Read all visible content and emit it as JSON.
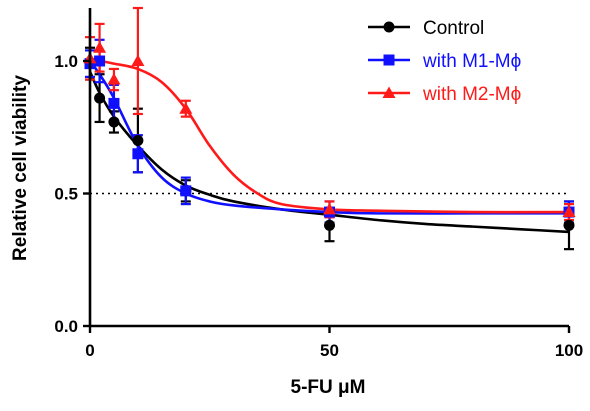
{
  "chart_data": {
    "type": "scatter",
    "title": "",
    "xlabel": "5-FU μM",
    "ylabel": "Relative cell viability",
    "xlim": [
      0,
      100
    ],
    "ylim": [
      0,
      1.2
    ],
    "xticks": [
      0,
      50,
      100
    ],
    "xtick_labels": [
      "0",
      "50",
      "100"
    ],
    "yticks": [
      0,
      0.5,
      1.0
    ],
    "ytick_labels": [
      "0.0",
      "0.5",
      "1.0"
    ],
    "grid": false,
    "legend_position": "top-right",
    "reference_line": {
      "y": 0.5,
      "style": "dotted"
    },
    "series": [
      {
        "name": "Control",
        "color": "#000000",
        "marker": "circle",
        "x": [
          0,
          2,
          5,
          10,
          20,
          50,
          100
        ],
        "y": [
          0.99,
          0.86,
          0.77,
          0.7,
          0.51,
          0.38,
          0.38
        ],
        "err": [
          0.06,
          0.09,
          0.04,
          0.12,
          0.04,
          0.06,
          0.09
        ],
        "fit": {
          "x": [
            0,
            2,
            5,
            10,
            15,
            20,
            25,
            30,
            40,
            50,
            60,
            70,
            80,
            90,
            100
          ],
          "y": [
            0.96,
            0.88,
            0.79,
            0.68,
            0.59,
            0.53,
            0.495,
            0.47,
            0.44,
            0.42,
            0.4,
            0.385,
            0.375,
            0.365,
            0.355
          ]
        }
      },
      {
        "name": "with M1-Mϕ",
        "color": "#1010ff",
        "marker": "square",
        "x": [
          0,
          2,
          5,
          10,
          20,
          50,
          100
        ],
        "y": [
          0.99,
          1.0,
          0.84,
          0.65,
          0.51,
          0.43,
          0.43
        ],
        "err": [
          0.05,
          0.08,
          0.07,
          0.07,
          0.05,
          0.04,
          0.04
        ],
        "fit": {
          "x": [
            0,
            2,
            5,
            10,
            15,
            20,
            25,
            30,
            40,
            50,
            60,
            80,
            100
          ],
          "y": [
            1.0,
            0.95,
            0.86,
            0.68,
            0.56,
            0.5,
            0.47,
            0.455,
            0.44,
            0.43,
            0.425,
            0.425,
            0.425
          ]
        }
      },
      {
        "name": "with M2-Mϕ",
        "color": "#ff1a1a",
        "marker": "triangle",
        "x": [
          0,
          2,
          5,
          10,
          20,
          50,
          100
        ],
        "y": [
          1.01,
          1.05,
          0.93,
          1.0,
          0.82,
          0.44,
          0.43
        ],
        "err": [
          0.08,
          0.09,
          0.04,
          0.2,
          0.03,
          0.03,
          0.03
        ],
        "fit": {
          "x": [
            0,
            2,
            5,
            10,
            15,
            20,
            25,
            30,
            35,
            40,
            50,
            60,
            80,
            100
          ],
          "y": [
            1.0,
            1.0,
            0.99,
            0.97,
            0.92,
            0.82,
            0.68,
            0.57,
            0.5,
            0.46,
            0.44,
            0.435,
            0.43,
            0.43
          ]
        }
      }
    ]
  }
}
